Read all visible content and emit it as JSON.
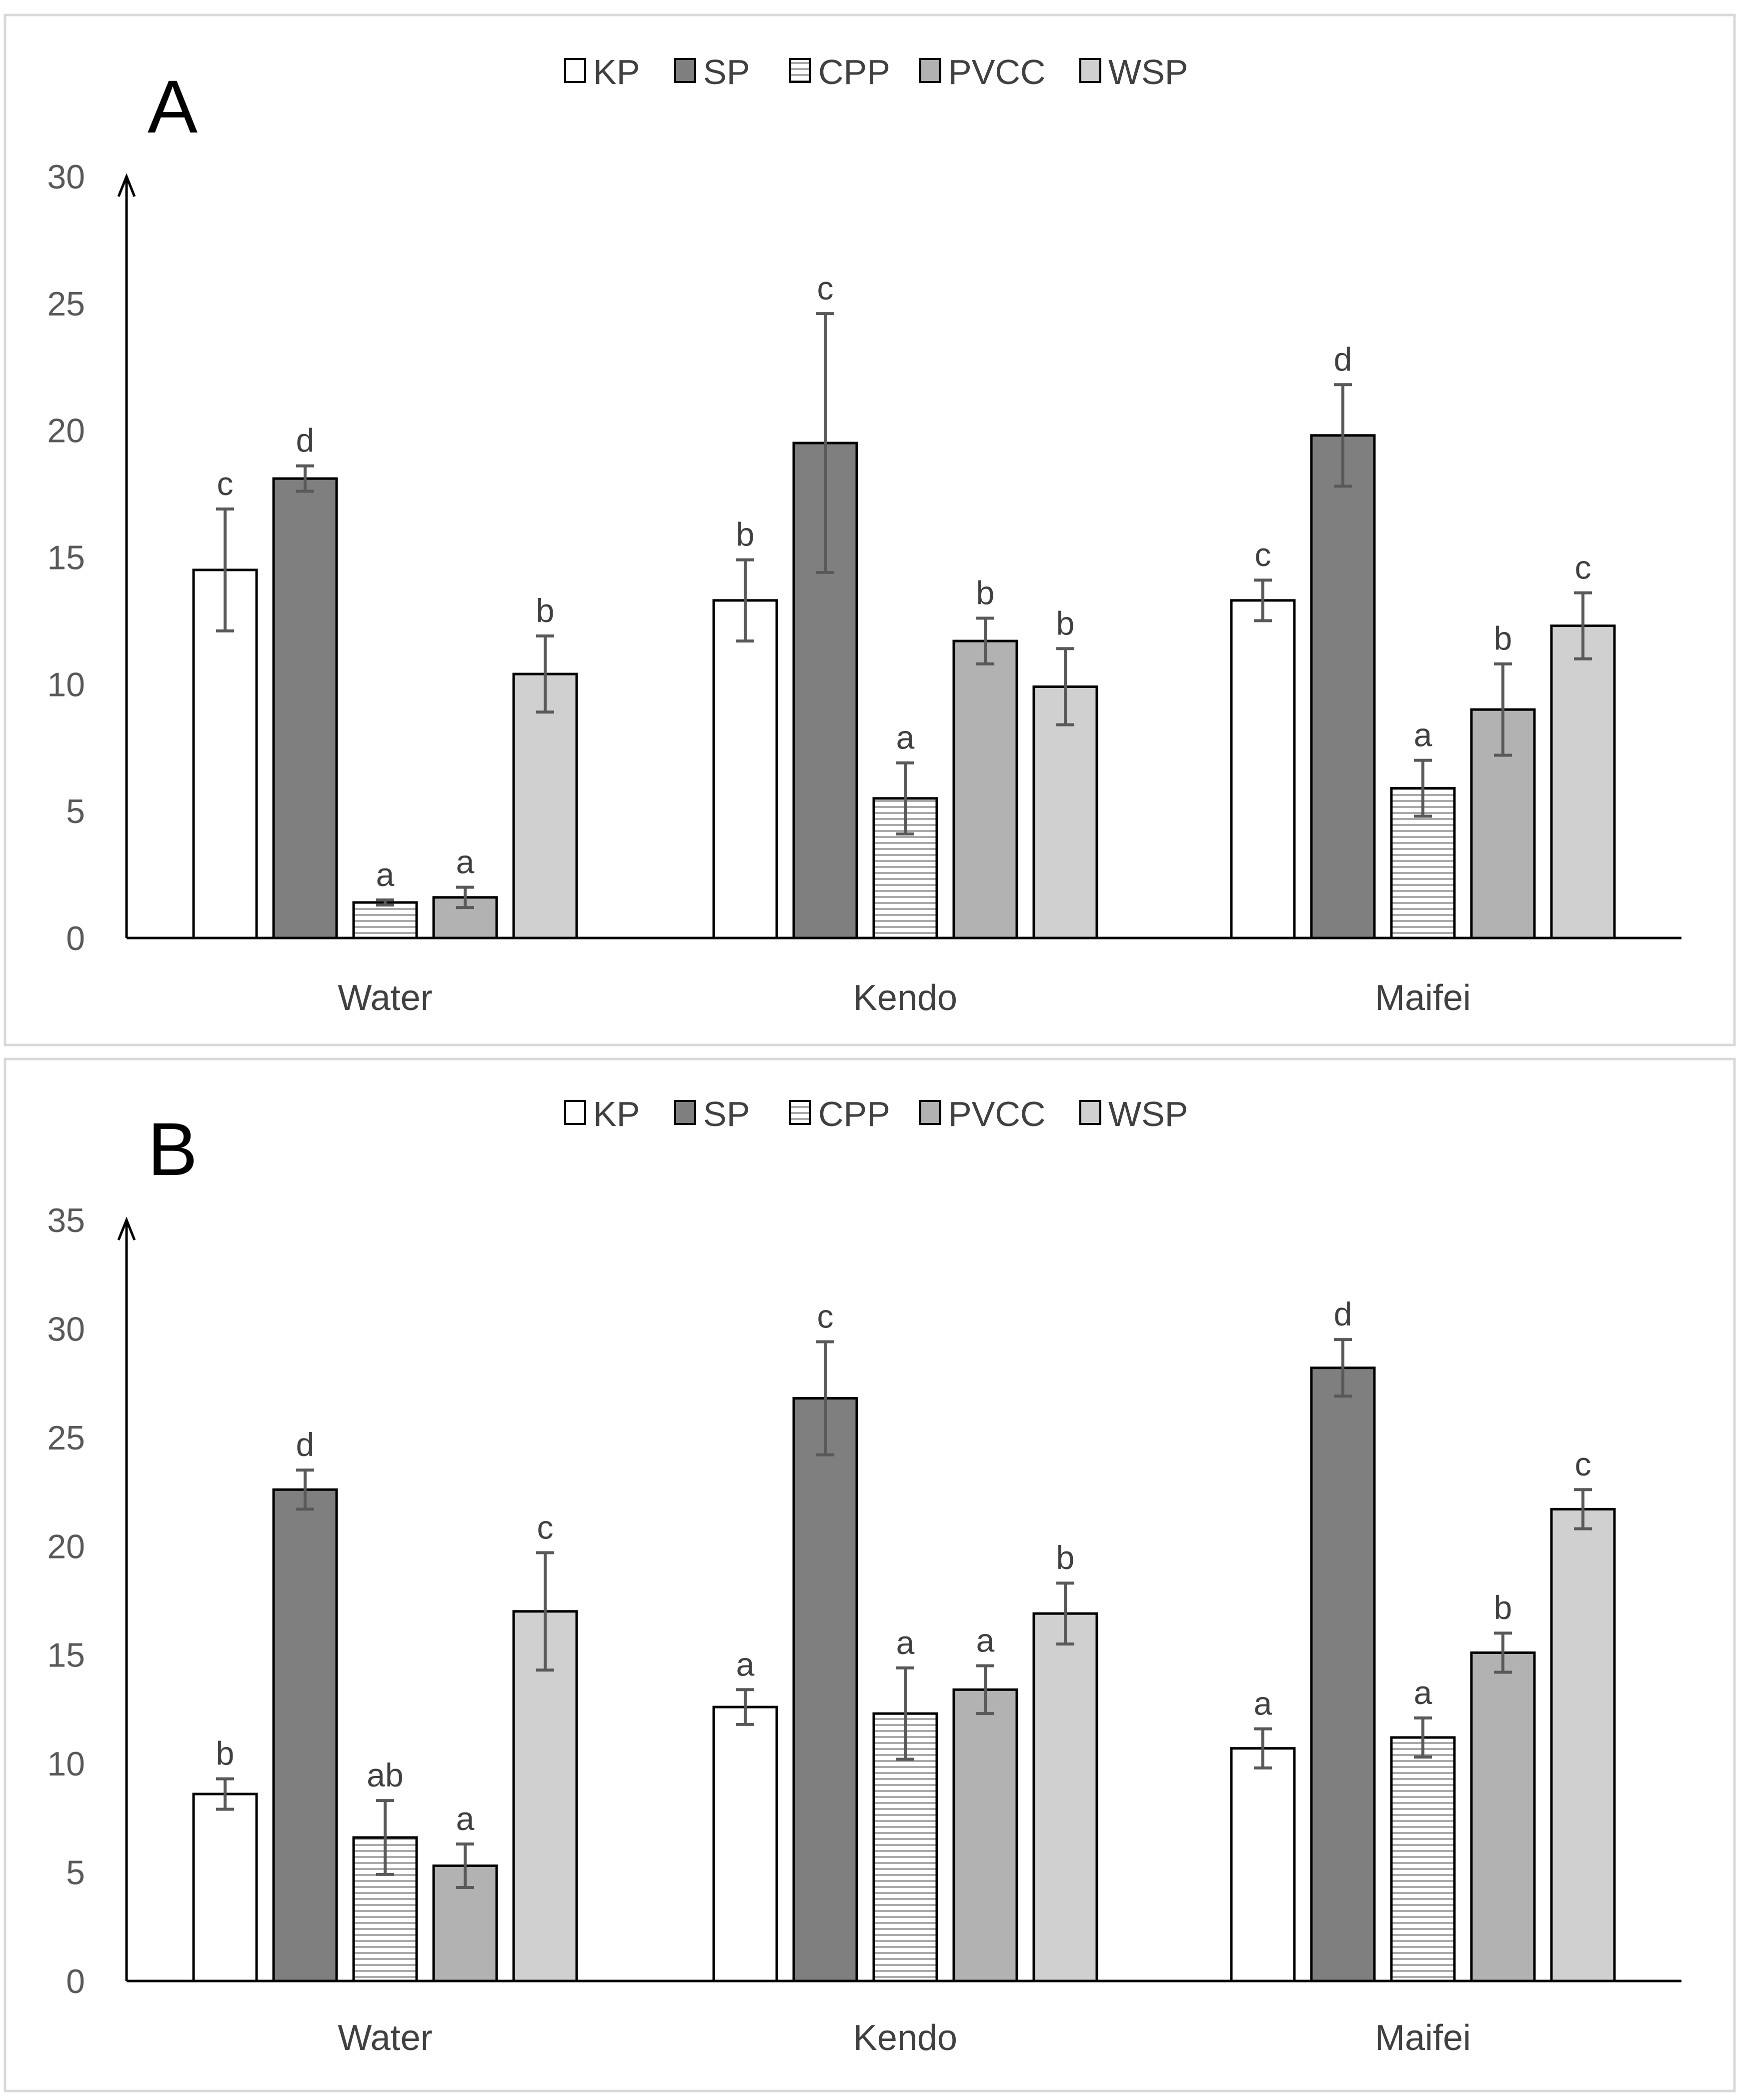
{
  "chart_data": [
    {
      "type": "bar",
      "panel_label": "A",
      "categories": [
        "Water",
        "Kendo",
        "Maifei"
      ],
      "series": [
        {
          "name": "KP",
          "values": [
            14.5,
            13.3,
            13.3
          ],
          "errors": [
            2.4,
            1.6,
            0.8
          ],
          "significance": [
            "c",
            "b",
            "c"
          ]
        },
        {
          "name": "SP",
          "values": [
            18.1,
            19.5,
            19.8
          ],
          "errors": [
            0.5,
            5.1,
            2.0
          ],
          "significance": [
            "d",
            "c",
            "d"
          ]
        },
        {
          "name": "CPP",
          "values": [
            1.4,
            5.5,
            5.9
          ],
          "errors": [
            0.1,
            1.4,
            1.1
          ],
          "significance": [
            "a",
            "a",
            "a"
          ]
        },
        {
          "name": "PVCC",
          "values": [
            1.6,
            11.7,
            9.0
          ],
          "errors": [
            0.4,
            0.9,
            1.8
          ],
          "significance": [
            "a",
            "b",
            "b"
          ]
        },
        {
          "name": "WSP",
          "values": [
            10.4,
            9.9,
            12.3
          ],
          "errors": [
            1.5,
            1.5,
            1.3
          ],
          "significance": [
            "b",
            "b",
            "c"
          ]
        }
      ],
      "ylim": [
        0,
        30
      ],
      "yticks": [
        0,
        5,
        10,
        15,
        20,
        25,
        30
      ],
      "legend_position": "top"
    },
    {
      "type": "bar",
      "panel_label": "B",
      "categories": [
        "Water",
        "Kendo",
        "Maifei"
      ],
      "series": [
        {
          "name": "KP",
          "values": [
            8.6,
            12.6,
            10.7
          ],
          "errors": [
            0.7,
            0.8,
            0.9
          ],
          "significance": [
            "b",
            "a",
            "a"
          ]
        },
        {
          "name": "SP",
          "values": [
            22.6,
            26.8,
            28.2
          ],
          "errors": [
            0.9,
            2.6,
            1.3
          ],
          "significance": [
            "d",
            "c",
            "d"
          ]
        },
        {
          "name": "CPP",
          "values": [
            6.6,
            12.3,
            11.2
          ],
          "errors": [
            1.7,
            2.1,
            0.9
          ],
          "significance": [
            "ab",
            "a",
            "a"
          ]
        },
        {
          "name": "PVCC",
          "values": [
            5.3,
            13.4,
            15.1
          ],
          "errors": [
            1.0,
            1.1,
            0.9
          ],
          "significance": [
            "a",
            "a",
            "b"
          ]
        },
        {
          "name": "WSP",
          "values": [
            17.0,
            16.9,
            21.7
          ],
          "errors": [
            2.7,
            1.4,
            0.9
          ],
          "significance": [
            "c",
            "b",
            "c"
          ]
        }
      ],
      "ylim": [
        0,
        35
      ],
      "yticks": [
        0,
        5,
        10,
        15,
        20,
        25,
        30,
        35
      ],
      "legend_position": "top"
    }
  ],
  "series_styles": {
    "KP": {
      "fill": "#ffffff",
      "pattern": "none"
    },
    "SP": {
      "fill": "#7f7f7f",
      "pattern": "none"
    },
    "CPP": {
      "fill": "#ffffff",
      "pattern": "horizontal-lines"
    },
    "PVCC": {
      "fill": "#b2b2b2",
      "pattern": "none"
    },
    "WSP": {
      "fill": "#d0d0d0",
      "pattern": "none"
    }
  }
}
